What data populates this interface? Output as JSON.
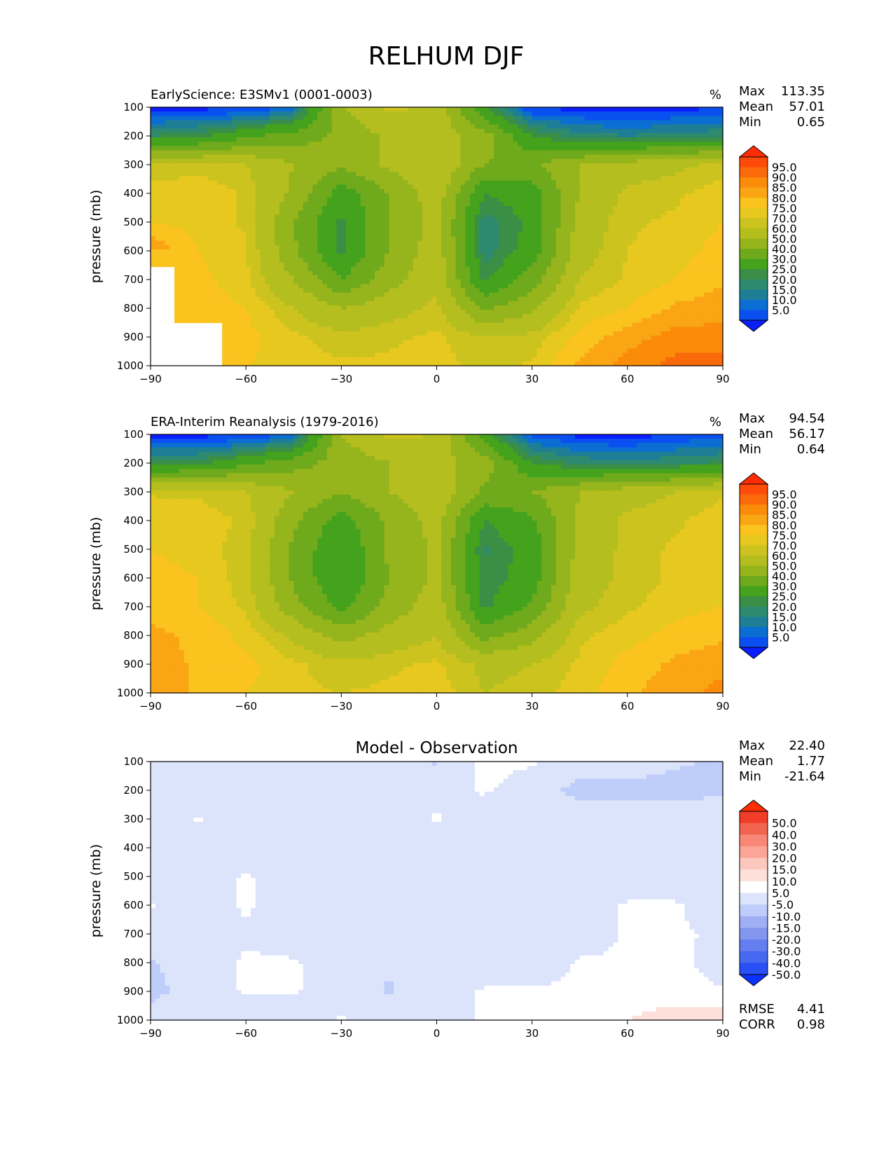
{
  "title": "RELHUM DJF",
  "colors": {
    "abs_levels": [
      "#0a1eff",
      "#0a50f0",
      "#0a6ed2",
      "#1e7e96",
      "#2e8a6e",
      "#3a8e46",
      "#44a21c",
      "#6eaa1c",
      "#96b41c",
      "#b4be1e",
      "#cdc31e",
      "#e6c81e",
      "#fac31e",
      "#faa514",
      "#fa8c0a",
      "#fa690a",
      "#ff4b0a",
      "#ff2d05"
    ],
    "diff_levels": [
      "#0a32ff",
      "#2850f5",
      "#4669f0",
      "#647df0",
      "#8296f0",
      "#a0aff5",
      "#becdfa",
      "#dce4fc",
      "#ffffff",
      "#fde0da",
      "#fcc8be",
      "#fca596",
      "#f88778",
      "#f26450",
      "#f03c28",
      "#ff2d05"
    ]
  },
  "panels": [
    {
      "id": "model",
      "title": "EarlyScience: E3SMv1 (0001-0003)",
      "units": "%",
      "stats": {
        "max_label": "Max",
        "max": "113.35",
        "mean_label": "Mean",
        "mean": "57.01",
        "min_label": "Min",
        "min": "0.65"
      },
      "colorbar_labels": [
        "95.0",
        "90.0",
        "85.0",
        "80.0",
        "75.0",
        "70.0",
        "60.0",
        "50.0",
        "40.0",
        "30.0",
        "25.0",
        "20.0",
        "15.0",
        "10.0",
        "5.0"
      ]
    },
    {
      "id": "obs",
      "title": "ERA-Interim Reanalysis (1979-2016)",
      "units": "%",
      "stats": {
        "max_label": "Max",
        "max": "94.54",
        "mean_label": "Mean",
        "mean": "56.17",
        "min_label": "Min",
        "min": "0.64"
      },
      "colorbar_labels": [
        "95.0",
        "90.0",
        "85.0",
        "80.0",
        "75.0",
        "70.0",
        "60.0",
        "50.0",
        "40.0",
        "30.0",
        "25.0",
        "20.0",
        "15.0",
        "10.0",
        "5.0"
      ]
    },
    {
      "id": "diff",
      "title": "Model - Observation",
      "units": "",
      "stats": {
        "max_label": "Max",
        "max": "22.40",
        "mean_label": "Mean",
        "mean": "1.77",
        "min_label": "Min",
        "min": "-21.64"
      },
      "colorbar_labels": [
        "50.0",
        "40.0",
        "30.0",
        "20.0",
        "15.0",
        "10.0",
        "5.0",
        "-5.0",
        "-10.0",
        "-15.0",
        "-20.0",
        "-30.0",
        "-40.0",
        "-50.0"
      ],
      "extra": {
        "rmse_label": "RMSE",
        "rmse": "4.41",
        "corr_label": "CORR",
        "corr": "0.98"
      }
    }
  ],
  "chart_data": {
    "type": "heatmap",
    "title": "RELHUM DJF",
    "xlabel": "",
    "ylabel": "pressure (mb)",
    "xlim": [
      -90,
      90
    ],
    "ylim": [
      1000,
      100
    ],
    "xticks": [
      "−90",
      "−60",
      "−30",
      "0",
      "30",
      "60",
      "90"
    ],
    "xtick_values": [
      -90,
      -60,
      -30,
      0,
      30,
      60,
      90
    ],
    "yticks": [
      "100",
      "200",
      "300",
      "400",
      "500",
      "600",
      "700",
      "800",
      "900",
      "1000"
    ],
    "ytick_values": [
      100,
      200,
      300,
      400,
      500,
      600,
      700,
      800,
      900,
      1000
    ],
    "contour_levels_abs": [
      5,
      10,
      15,
      20,
      25,
      30,
      40,
      50,
      60,
      70,
      75,
      80,
      85,
      90,
      95
    ],
    "contour_levels_diff": [
      -50,
      -40,
      -30,
      -20,
      -15,
      -10,
      -5,
      5,
      10,
      15,
      20,
      30,
      40,
      50
    ],
    "x": [
      -90,
      -75,
      -60,
      -45,
      -30,
      -15,
      0,
      15,
      30,
      45,
      60,
      75,
      90
    ],
    "y": [
      100,
      200,
      300,
      400,
      500,
      600,
      700,
      800,
      900,
      1000
    ],
    "series": [
      {
        "name": "EarlyScience: E3SMv1 (0001-0003)",
        "z": [
          [
            3,
            3,
            3,
            12,
            60,
            72,
            68,
            30,
            4,
            3,
            2,
            3,
            4
          ],
          [
            25,
            28,
            38,
            45,
            52,
            62,
            66,
            55,
            30,
            22,
            20,
            22,
            24
          ],
          [
            70,
            72,
            70,
            60,
            52,
            62,
            70,
            50,
            48,
            60,
            65,
            68,
            72
          ],
          [
            78,
            80,
            74,
            58,
            35,
            50,
            66,
            30,
            35,
            60,
            72,
            74,
            78
          ],
          [
            80,
            78,
            74,
            50,
            28,
            50,
            64,
            22,
            32,
            64,
            74,
            76,
            80
          ],
          [
            90,
            80,
            76,
            52,
            28,
            50,
            66,
            22,
            34,
            66,
            75,
            78,
            82
          ],
          [
            null,
            82,
            76,
            60,
            40,
            56,
            68,
            28,
            45,
            70,
            76,
            80,
            84
          ],
          [
            null,
            84,
            80,
            70,
            60,
            66,
            72,
            48,
            58,
            76,
            80,
            86,
            88
          ],
          [
            null,
            null,
            82,
            76,
            72,
            74,
            76,
            70,
            72,
            82,
            88,
            92,
            92
          ],
          [
            null,
            null,
            80,
            78,
            76,
            76,
            78,
            72,
            76,
            86,
            92,
            97,
            97
          ]
        ]
      },
      {
        "name": "ERA-Interim Reanalysis (1979-2016)",
        "z": [
          [
            3,
            3,
            3,
            12,
            60,
            72,
            70,
            34,
            8,
            3,
            2,
            5,
            8
          ],
          [
            26,
            28,
            38,
            46,
            54,
            60,
            64,
            55,
            30,
            24,
            22,
            24,
            26
          ],
          [
            74,
            74,
            70,
            60,
            50,
            60,
            68,
            48,
            50,
            60,
            66,
            70,
            74
          ],
          [
            80,
            78,
            74,
            52,
            35,
            52,
            64,
            30,
            38,
            62,
            72,
            74,
            78
          ],
          [
            80,
            78,
            72,
            48,
            30,
            52,
            62,
            24,
            34,
            64,
            72,
            76,
            78
          ],
          [
            82,
            80,
            72,
            48,
            30,
            50,
            62,
            26,
            34,
            66,
            72,
            76,
            80
          ],
          [
            84,
            80,
            74,
            54,
            36,
            54,
            66,
            28,
            42,
            68,
            74,
            78,
            80
          ],
          [
            86,
            84,
            78,
            68,
            56,
            64,
            70,
            46,
            56,
            74,
            78,
            82,
            84
          ],
          [
            88,
            84,
            82,
            76,
            72,
            74,
            76,
            68,
            70,
            76,
            82,
            86,
            88
          ],
          [
            90,
            84,
            80,
            76,
            75,
            76,
            78,
            70,
            72,
            78,
            84,
            88,
            92
          ]
        ]
      },
      {
        "name": "Model - Observation",
        "z": [
          [
            0,
            0,
            0,
            0,
            0,
            -2,
            -6,
            8,
            6,
            0,
            0,
            -4,
            -6
          ],
          [
            0,
            0,
            0,
            0,
            0,
            0,
            2,
            6,
            0,
            -8,
            -8,
            -8,
            -6
          ],
          [
            0,
            6,
            0,
            0,
            0,
            0,
            6,
            0,
            0,
            0,
            0,
            0,
            0
          ],
          [
            0,
            0,
            0,
            0,
            0,
            0,
            0,
            0,
            0,
            0,
            0,
            0,
            0
          ],
          [
            0,
            0,
            6,
            0,
            0,
            0,
            0,
            0,
            0,
            0,
            0,
            0,
            0
          ],
          [
            6,
            0,
            6,
            0,
            0,
            0,
            0,
            0,
            0,
            0,
            6,
            6,
            0
          ],
          [
            0,
            0,
            4,
            0,
            0,
            0,
            0,
            0,
            -4,
            0,
            6,
            6,
            4
          ],
          [
            -6,
            0,
            6,
            6,
            0,
            -4,
            0,
            0,
            0,
            6,
            6,
            8,
            0
          ],
          [
            -8,
            0,
            6,
            6,
            0,
            -6,
            0,
            6,
            6,
            6,
            8,
            8,
            6
          ],
          [
            0,
            0,
            0,
            0,
            6,
            0,
            0,
            6,
            8,
            6,
            10,
            12,
            14
          ]
        ]
      }
    ]
  }
}
